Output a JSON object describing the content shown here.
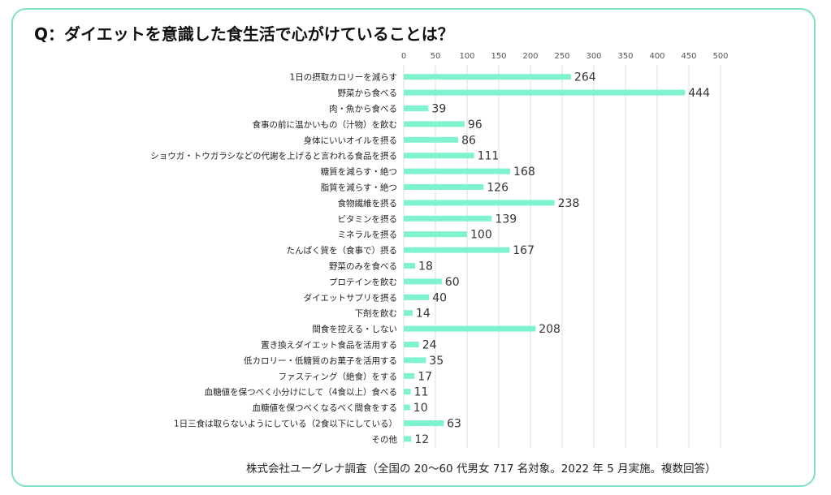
{
  "chart_data": {
    "type": "bar",
    "orientation": "horizontal",
    "title": "Q：ダイエットを意識した食生活で心がけていることは？",
    "xlabel": "",
    "ylabel": "",
    "xlim": [
      0,
      500
    ],
    "ticks": [
      0,
      50,
      100,
      150,
      200,
      250,
      300,
      350,
      400,
      450,
      500
    ],
    "grid": true,
    "bar_color": "#7ff2d0",
    "categories": [
      "1日の摂取カロリーを減らす",
      "野菜から食べる",
      "肉・魚から食べる",
      "食事の前に温かいもの（汁物）を飲む",
      "身体にいいオイルを摂る",
      "ショウガ・トウガラシなどの代謝を上げると言われる食品を摂る",
      "糖質を減らす・絶つ",
      "脂質を減らす・絶つ",
      "食物繊維を摂る",
      "ビタミンを摂る",
      "ミネラルを摂る",
      "たんぱく質を（食事で）摂る",
      "野菜のみを食べる",
      "プロテインを飲む",
      "ダイエットサプリを摂る",
      "下剤を飲む",
      "間食を控える・しない",
      "置き換えダイエット食品を活用する",
      "低カロリー・低糖質のお菓子を活用する",
      "ファスティング（絶食）をする",
      "血糖値を保つべく小分けにして（4食以上）食べる",
      "血糖値を保つべくなるべく間食をする",
      "1日三食は取らないようにしている（2食以下にしている）",
      "その他"
    ],
    "values": [
      264,
      444,
      39,
      96,
      86,
      111,
      168,
      126,
      238,
      139,
      100,
      167,
      18,
      60,
      40,
      14,
      208,
      24,
      35,
      17,
      11,
      10,
      63,
      12
    ]
  },
  "footnote": "株式会社ユーグレナ調査（全国の 20～60 代男女 717 名対象。2022 年 5 月実施。複数回答）"
}
